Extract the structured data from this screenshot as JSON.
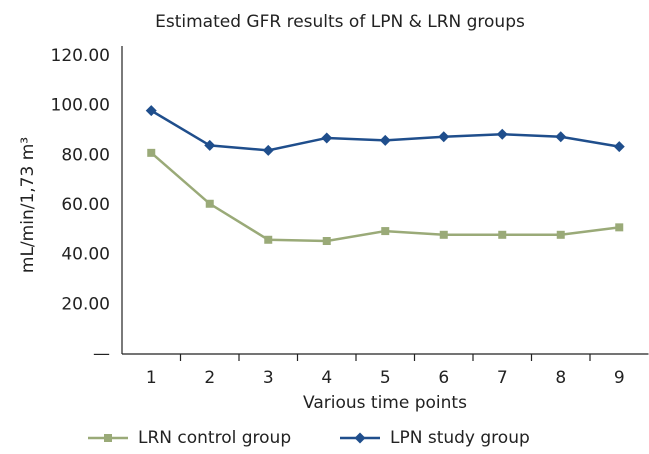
{
  "chart_data": {
    "type": "line",
    "title": "Estimated GFR results of LPN & LRN groups",
    "x_label": "Various time points",
    "y_label": "mL/min/1,73 m³",
    "categories": [
      "1",
      "2",
      "3",
      "4",
      "5",
      "6",
      "7",
      "8",
      "9"
    ],
    "series": [
      {
        "name": "LRN control group",
        "color": "#9aaa78",
        "marker": "square",
        "values": [
          81,
          60.5,
          46,
          45.5,
          49.5,
          48,
          48,
          48,
          51
        ]
      },
      {
        "name": "LPN study group",
        "color": "#1f4e8c",
        "marker": "diamond",
        "values": [
          98,
          84,
          82,
          87,
          86,
          87.5,
          88.5,
          87.5,
          83.5
        ]
      }
    ],
    "ylim": [
      0,
      120
    ],
    "yticks": [
      {
        "value": 0,
        "label": "—"
      },
      {
        "value": 20,
        "label": "20.00"
      },
      {
        "value": 40,
        "label": "40.00"
      },
      {
        "value": 60,
        "label": "60.00"
      },
      {
        "value": 80,
        "label": "80.00"
      },
      {
        "value": 100,
        "label": "100.00"
      },
      {
        "value": 120,
        "label": "120.00"
      }
    ],
    "legend": "bottom"
  }
}
